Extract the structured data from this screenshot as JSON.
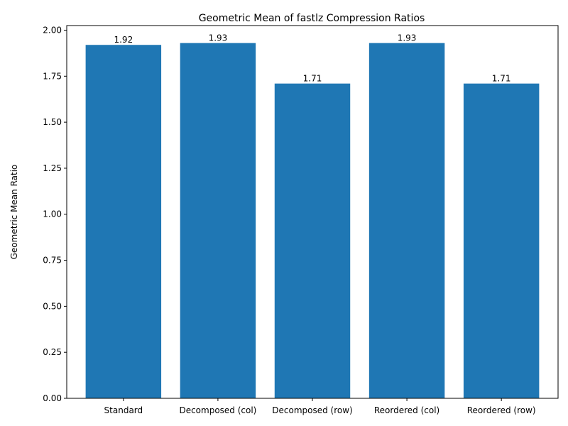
{
  "chart_data": {
    "type": "bar",
    "title": "Geometric Mean of fastlz Compression Ratios",
    "xlabel": "",
    "ylabel": "Geometric Mean Ratio",
    "categories": [
      "Standard",
      "Decomposed (col)",
      "Decomposed (row)",
      "Reordered (col)",
      "Reordered (row)"
    ],
    "values": [
      1.92,
      1.93,
      1.71,
      1.93,
      1.71
    ],
    "data_labels": [
      "1.92",
      "1.93",
      "1.71",
      "1.93",
      "1.71"
    ],
    "ylim": [
      0,
      2.025
    ],
    "yticks": [
      0.0,
      0.25,
      0.5,
      0.75,
      1.0,
      1.25,
      1.5,
      1.75,
      2.0
    ],
    "ytick_labels": [
      "0.00",
      "0.25",
      "0.50",
      "0.75",
      "1.00",
      "1.25",
      "1.50",
      "1.75",
      "2.00"
    ],
    "bar_color": "#1f77b4",
    "grid": false,
    "legend": false
  }
}
